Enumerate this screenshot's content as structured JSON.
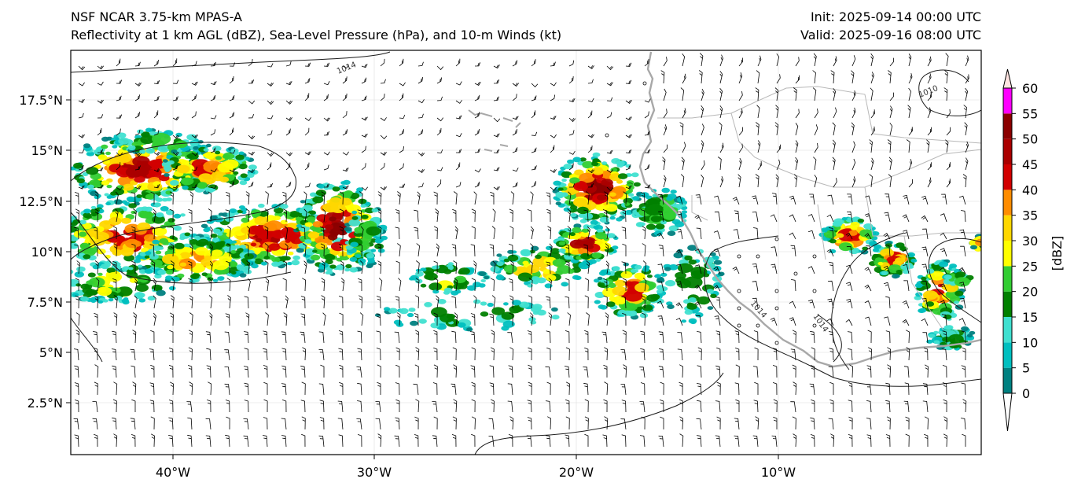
{
  "header": {
    "model": "NSF NCAR 3.75-km MPAS-A",
    "product": "Reflectivity at 1 km AGL (dBZ), Sea-Level Pressure (hPa), and 10-m Winds (kt)",
    "init": "Init: 2025-09-14 00:00 UTC",
    "valid": "Valid: 2025-09-16 08:00 UTC"
  },
  "map": {
    "lat_ticks": [
      "17.5°N",
      "15°N",
      "12.5°N",
      "10°N",
      "7.5°N",
      "5°N",
      "2.5°N"
    ],
    "lon_ticks": [
      "40°W",
      "30°W",
      "20°W",
      "10°W"
    ],
    "isobar_labels": [
      "1014",
      "1010",
      "1014",
      "1014"
    ]
  },
  "colorbar": {
    "label": "[dBZ]",
    "ticks": [
      "0",
      "5",
      "10",
      "15",
      "20",
      "25",
      "30",
      "35",
      "40",
      "45",
      "50",
      "55",
      "60"
    ],
    "colors": [
      "#008080",
      "#00bfbf",
      "#40e0d0",
      "#008000",
      "#32cd32",
      "#ffff00",
      "#ffd700",
      "#ff8c00",
      "#d20000",
      "#aa0000",
      "#8b0000",
      "#ff00ff",
      "#ffe4e1"
    ],
    "colors_below": "#ffffff",
    "colors_above": "#ffe4e1"
  }
}
